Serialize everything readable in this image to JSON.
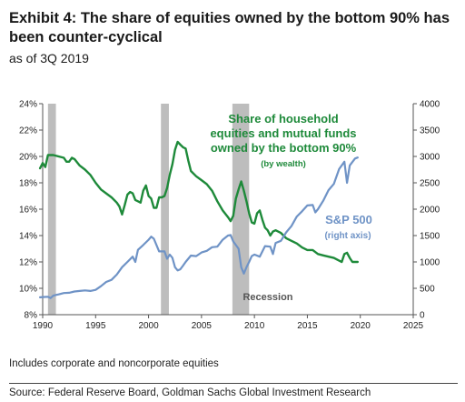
{
  "header": {
    "title": "Exhibit 4: The share of equities owned by the bottom 90% has been counter-cyclical",
    "subtitle": "as of 3Q 2019"
  },
  "footer": {
    "note": "Includes corporate and noncorporate equities",
    "source": "Source: Federal Reserve Board, Goldman Sachs Global Investment Research"
  },
  "chart_data": {
    "type": "line",
    "x_range": [
      1990,
      2025
    ],
    "x_ticks": [
      "1990",
      "1995",
      "2000",
      "2005",
      "2010",
      "2015",
      "2020",
      "2025"
    ],
    "left_axis": {
      "range": [
        8,
        24
      ],
      "ticks": [
        "8%",
        "10%",
        "12%",
        "14%",
        "16%",
        "18%",
        "20%",
        "22%",
        "24%"
      ]
    },
    "right_axis": {
      "range": [
        0,
        4000
      ],
      "ticks": [
        "0",
        "500",
        "1000",
        "1500",
        "2000",
        "2500",
        "3000",
        "3500",
        "4000"
      ]
    },
    "recessions": [
      [
        1990.5,
        1991.25
      ],
      [
        2001.17,
        2001.92
      ],
      [
        2007.92,
        2009.5
      ]
    ],
    "recession_label": "Recession",
    "series": [
      {
        "name": "Share of household equities and mutual funds owned by the bottom 90%",
        "name_sub": "(by wealth)",
        "axis": "left",
        "color": "#1e8a3a",
        "points": [
          [
            1989.75,
            19.1
          ],
          [
            1990.0,
            19.5
          ],
          [
            1990.25,
            19.2
          ],
          [
            1990.5,
            20.1
          ],
          [
            1990.75,
            20.1
          ],
          [
            1991.0,
            20.1
          ],
          [
            1991.5,
            20.0
          ],
          [
            1992.0,
            19.9
          ],
          [
            1992.25,
            19.6
          ],
          [
            1992.5,
            19.6
          ],
          [
            1992.75,
            19.9
          ],
          [
            1993.0,
            19.8
          ],
          [
            1993.5,
            19.3
          ],
          [
            1994.0,
            19.0
          ],
          [
            1994.5,
            18.6
          ],
          [
            1995.0,
            18.0
          ],
          [
            1995.5,
            17.5
          ],
          [
            1996.0,
            17.2
          ],
          [
            1996.5,
            16.9
          ],
          [
            1997.0,
            16.5
          ],
          [
            1997.25,
            16.2
          ],
          [
            1997.5,
            15.6
          ],
          [
            1997.75,
            16.3
          ],
          [
            1998.0,
            17.1
          ],
          [
            1998.25,
            17.3
          ],
          [
            1998.5,
            17.2
          ],
          [
            1998.75,
            16.7
          ],
          [
            1999.0,
            16.6
          ],
          [
            1999.25,
            16.5
          ],
          [
            1999.5,
            17.4
          ],
          [
            1999.75,
            17.8
          ],
          [
            2000.0,
            17.0
          ],
          [
            2000.25,
            16.8
          ],
          [
            2000.5,
            16.1
          ],
          [
            2000.75,
            16.1
          ],
          [
            2001.0,
            16.9
          ],
          [
            2001.25,
            16.9
          ],
          [
            2001.5,
            17.0
          ],
          [
            2001.75,
            17.6
          ],
          [
            2002.0,
            18.6
          ],
          [
            2002.25,
            19.4
          ],
          [
            2002.5,
            20.5
          ],
          [
            2002.75,
            21.1
          ],
          [
            2003.0,
            20.9
          ],
          [
            2003.25,
            20.7
          ],
          [
            2003.5,
            20.6
          ],
          [
            2003.75,
            19.7
          ],
          [
            2004.0,
            18.9
          ],
          [
            2004.5,
            18.5
          ],
          [
            2005.0,
            18.2
          ],
          [
            2005.5,
            17.9
          ],
          [
            2006.0,
            17.4
          ],
          [
            2006.5,
            16.6
          ],
          [
            2007.0,
            15.9
          ],
          [
            2007.5,
            15.4
          ],
          [
            2007.75,
            15.1
          ],
          [
            2008.0,
            15.5
          ],
          [
            2008.25,
            16.8
          ],
          [
            2008.5,
            17.5
          ],
          [
            2008.75,
            18.1
          ],
          [
            2009.0,
            17.4
          ],
          [
            2009.25,
            16.6
          ],
          [
            2009.5,
            15.7
          ],
          [
            2009.75,
            15.0
          ],
          [
            2010.0,
            14.9
          ],
          [
            2010.25,
            15.7
          ],
          [
            2010.5,
            15.9
          ],
          [
            2010.75,
            15.2
          ],
          [
            2011.0,
            14.6
          ],
          [
            2011.25,
            14.4
          ],
          [
            2011.5,
            14.0
          ],
          [
            2011.75,
            14.3
          ],
          [
            2012.0,
            14.4
          ],
          [
            2012.5,
            14.2
          ],
          [
            2013.0,
            13.8
          ],
          [
            2013.5,
            13.6
          ],
          [
            2014.0,
            13.4
          ],
          [
            2014.5,
            13.1
          ],
          [
            2015.0,
            12.9
          ],
          [
            2015.5,
            12.9
          ],
          [
            2016.0,
            12.6
          ],
          [
            2016.5,
            12.5
          ],
          [
            2017.0,
            12.4
          ],
          [
            2017.5,
            12.3
          ],
          [
            2018.0,
            12.1
          ],
          [
            2018.25,
            12.0
          ],
          [
            2018.5,
            12.6
          ],
          [
            2018.75,
            12.7
          ],
          [
            2019.0,
            12.3
          ],
          [
            2019.25,
            12.0
          ],
          [
            2019.75,
            12.0
          ]
        ]
      },
      {
        "name": "S&P 500",
        "name_sub": "(right axis)",
        "axis": "right",
        "color": "#6f93c6",
        "points": [
          [
            1989.75,
            330
          ],
          [
            1990.0,
            335
          ],
          [
            1990.5,
            340
          ],
          [
            1990.75,
            315
          ],
          [
            1991.0,
            360
          ],
          [
            1991.25,
            375
          ],
          [
            1991.5,
            385
          ],
          [
            1992.0,
            410
          ],
          [
            1992.5,
            415
          ],
          [
            1993.0,
            440
          ],
          [
            1993.5,
            450
          ],
          [
            1994.0,
            460
          ],
          [
            1994.5,
            450
          ],
          [
            1995.0,
            470
          ],
          [
            1995.5,
            540
          ],
          [
            1996.0,
            620
          ],
          [
            1996.5,
            660
          ],
          [
            1997.0,
            760
          ],
          [
            1997.5,
            900
          ],
          [
            1998.0,
            1000
          ],
          [
            1998.5,
            1100
          ],
          [
            1998.75,
            1000
          ],
          [
            1999.0,
            1230
          ],
          [
            1999.5,
            1320
          ],
          [
            2000.0,
            1420
          ],
          [
            2000.25,
            1480
          ],
          [
            2000.5,
            1440
          ],
          [
            2000.75,
            1320
          ],
          [
            2001.0,
            1200
          ],
          [
            2001.5,
            1200
          ],
          [
            2001.75,
            1060
          ],
          [
            2002.0,
            1140
          ],
          [
            2002.25,
            1080
          ],
          [
            2002.5,
            900
          ],
          [
            2002.75,
            840
          ],
          [
            2003.0,
            860
          ],
          [
            2003.25,
            930
          ],
          [
            2003.5,
            1000
          ],
          [
            2004.0,
            1120
          ],
          [
            2004.5,
            1110
          ],
          [
            2005.0,
            1180
          ],
          [
            2005.5,
            1210
          ],
          [
            2006.0,
            1280
          ],
          [
            2006.5,
            1290
          ],
          [
            2007.0,
            1420
          ],
          [
            2007.5,
            1500
          ],
          [
            2007.75,
            1510
          ],
          [
            2008.0,
            1390
          ],
          [
            2008.25,
            1320
          ],
          [
            2008.5,
            1250
          ],
          [
            2008.75,
            900
          ],
          [
            2009.0,
            780
          ],
          [
            2009.25,
            900
          ],
          [
            2009.5,
            1000
          ],
          [
            2009.75,
            1110
          ],
          [
            2010.0,
            1140
          ],
          [
            2010.5,
            1100
          ],
          [
            2011.0,
            1300
          ],
          [
            2011.5,
            1290
          ],
          [
            2011.75,
            1150
          ],
          [
            2012.0,
            1360
          ],
          [
            2012.5,
            1400
          ],
          [
            2013.0,
            1560
          ],
          [
            2013.5,
            1680
          ],
          [
            2014.0,
            1860
          ],
          [
            2014.5,
            1960
          ],
          [
            2015.0,
            2070
          ],
          [
            2015.5,
            2080
          ],
          [
            2015.75,
            1940
          ],
          [
            2016.0,
            2000
          ],
          [
            2016.5,
            2160
          ],
          [
            2017.0,
            2360
          ],
          [
            2017.5,
            2480
          ],
          [
            2018.0,
            2760
          ],
          [
            2018.5,
            2900
          ],
          [
            2018.75,
            2500
          ],
          [
            2019.0,
            2830
          ],
          [
            2019.5,
            2960
          ],
          [
            2019.75,
            2980
          ]
        ]
      }
    ]
  }
}
